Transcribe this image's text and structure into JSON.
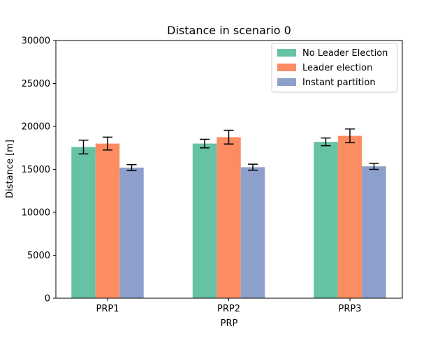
{
  "chart_data": {
    "type": "bar",
    "title": "Distance in scenario 0",
    "xlabel": "PRP",
    "ylabel": "Distance [m]",
    "categories": [
      "PRP1",
      "PRP2",
      "PRP3"
    ],
    "ylim": [
      0,
      30000
    ],
    "yticks": [
      0,
      5000,
      10000,
      15000,
      20000,
      25000,
      30000
    ],
    "grid": false,
    "legend_position": "top-right",
    "series": [
      {
        "name": "No Leader Election",
        "color": "#66c2a5",
        "values": [
          17600,
          18000,
          18200
        ],
        "errors": [
          800,
          500,
          450
        ]
      },
      {
        "name": "Leader election",
        "color": "#fc8d62",
        "values": [
          18000,
          18750,
          18900
        ],
        "errors": [
          750,
          800,
          800
        ]
      },
      {
        "name": "Instant partition",
        "color": "#8da0cb",
        "values": [
          15200,
          15250,
          15350
        ],
        "errors": [
          350,
          350,
          350
        ]
      }
    ]
  }
}
